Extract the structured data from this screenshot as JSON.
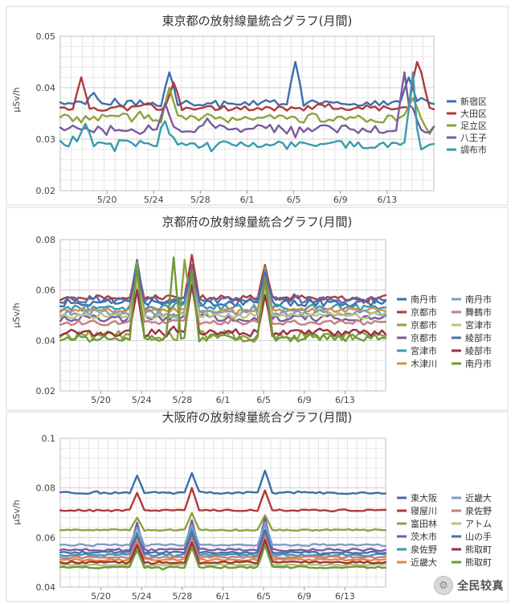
{
  "chart_data": [
    {
      "type": "line",
      "title": "東京都の放射線量統合グラフ(月間)",
      "ylabel": "μSv/h",
      "ylim": [
        0.02,
        0.05
      ],
      "yticks": [
        "0.02",
        "0.03",
        "0.04",
        "0.05"
      ],
      "xtick_labels": [
        "5/20",
        "5/24",
        "5/28",
        "6/1",
        "6/5",
        "6/9",
        "6/13"
      ],
      "legend_position": "right",
      "series": [
        {
          "name": "新宿区",
          "color": "#3f6ea8",
          "base": 0.037,
          "noise": 0.0006,
          "spikes": [
            [
              8,
              0.039
            ],
            [
              26,
              0.043
            ],
            [
              56,
              0.045
            ],
            [
              83,
              0.042
            ],
            [
              86,
              0.038
            ]
          ]
        },
        {
          "name": "大田区",
          "color": "#b03a3a",
          "base": 0.036,
          "noise": 0.0005,
          "spikes": [
            [
              5,
              0.042
            ],
            [
              21,
              0.037
            ],
            [
              27,
              0.041
            ],
            [
              62,
              0.037
            ],
            [
              85,
              0.047
            ],
            [
              86,
              0.043
            ]
          ]
        },
        {
          "name": "足立区",
          "color": "#8da33f",
          "base": 0.034,
          "noise": 0.0008,
          "spikes": [
            [
              15,
              0.035
            ],
            [
              26,
              0.04
            ],
            [
              45,
              0.034
            ],
            [
              60,
              0.035
            ],
            [
              84,
              0.038
            ],
            [
              88,
              0.031
            ]
          ]
        },
        {
          "name": "八王子",
          "color": "#7a5a9e",
          "base": 0.032,
          "noise": 0.0008,
          "spikes": [
            [
              25,
              0.037
            ],
            [
              35,
              0.034
            ],
            [
              82,
              0.043
            ],
            [
              84,
              0.036
            ]
          ]
        },
        {
          "name": "調布市",
          "color": "#3a9aae",
          "base": 0.029,
          "noise": 0.0008,
          "spikes": [
            [
              6,
              0.033
            ],
            [
              25,
              0.036
            ],
            [
              26,
              0.031
            ],
            [
              84,
              0.043
            ],
            [
              86,
              0.028
            ]
          ]
        }
      ]
    },
    {
      "type": "line",
      "title": "京都府の放射線量統合グラフ(月間)",
      "ylabel": "μSv/h",
      "ylim": [
        0.02,
        0.08
      ],
      "yticks": [
        "0.02",
        "0.04",
        "0.06",
        "0.08"
      ],
      "xtick_labels": [
        "5/20",
        "5/24",
        "5/28",
        "6/1",
        "6/5",
        "6/9",
        "6/13"
      ],
      "legend_position": "right",
      "series": [
        {
          "name": "南丹市",
          "color": "#3f6ea8",
          "base": 0.055,
          "noise": 0.0015,
          "spikes": [
            [
              21,
              0.072
            ],
            [
              36,
              0.07
            ],
            [
              56,
              0.067
            ]
          ]
        },
        {
          "name": "京都市",
          "color": "#b03a3a",
          "base": 0.057,
          "noise": 0.001,
          "spikes": [
            [
              21,
              0.068
            ],
            [
              36,
              0.074
            ],
            [
              56,
              0.07
            ]
          ]
        },
        {
          "name": "京都市",
          "color": "#8da33f",
          "base": 0.042,
          "noise": 0.002,
          "spikes": [
            [
              21,
              0.071
            ],
            [
              34,
              0.072
            ],
            [
              36,
              0.066
            ],
            [
              56,
              0.069
            ]
          ]
        },
        {
          "name": "京都市",
          "color": "#7a5a9e",
          "base": 0.049,
          "noise": 0.0015,
          "spikes": [
            [
              21,
              0.065
            ],
            [
              36,
              0.07
            ],
            [
              56,
              0.066
            ]
          ]
        },
        {
          "name": "宮津市",
          "color": "#3a9aae",
          "base": 0.053,
          "noise": 0.0015,
          "spikes": [
            [
              21,
              0.067
            ],
            [
              36,
              0.065
            ],
            [
              56,
              0.068
            ]
          ]
        },
        {
          "name": "木津川",
          "color": "#e08a3a",
          "base": 0.052,
          "noise": 0.001,
          "spikes": [
            [
              21,
              0.066
            ],
            [
              36,
              0.067
            ],
            [
              56,
              0.064
            ]
          ]
        },
        {
          "name": "南丹市",
          "color": "#7f9cc4",
          "base": 0.051,
          "noise": 0.0012,
          "spikes": [
            [
              21,
              0.064
            ],
            [
              36,
              0.066
            ],
            [
              56,
              0.063
            ]
          ]
        },
        {
          "name": "舞鶴市",
          "color": "#c47f7f",
          "base": 0.047,
          "noise": 0.001,
          "spikes": [
            [
              21,
              0.062
            ],
            [
              36,
              0.064
            ],
            [
              56,
              0.061
            ]
          ]
        },
        {
          "name": "宮津市",
          "color": "#b5c47f",
          "base": 0.05,
          "noise": 0.0012,
          "spikes": [
            [
              21,
              0.063
            ],
            [
              36,
              0.063
            ],
            [
              56,
              0.06
            ]
          ]
        },
        {
          "name": "綾部市",
          "color": "#4d6fb0",
          "base": 0.056,
          "noise": 0.0012,
          "spikes": [
            [
              21,
              0.069
            ],
            [
              36,
              0.068
            ],
            [
              56,
              0.067
            ]
          ]
        },
        {
          "name": "綾部市",
          "color": "#9e2f3f",
          "base": 0.043,
          "noise": 0.0015,
          "spikes": [
            [
              21,
              0.06
            ],
            [
              36,
              0.062
            ],
            [
              56,
              0.058
            ]
          ]
        },
        {
          "name": "南丹市",
          "color": "#6f9a3a",
          "base": 0.041,
          "noise": 0.0015,
          "spikes": [
            [
              21,
              0.07
            ],
            [
              31,
              0.073
            ],
            [
              36,
              0.068
            ],
            [
              56,
              0.065
            ]
          ]
        }
      ]
    },
    {
      "type": "line",
      "title": "大阪府の放射線量統合グラフ(月間)",
      "ylabel": "μSv/h",
      "ylim": [
        0.04,
        0.1
      ],
      "yticks": [
        "0.04",
        "0.06",
        "0.08",
        "0.1"
      ],
      "xtick_labels": [
        "5/20",
        "5/24",
        "5/28",
        "6/1",
        "6/5",
        "6/9",
        "6/13"
      ],
      "legend_position": "right",
      "series": [
        {
          "name": "東大阪",
          "color": "#3f6ea8",
          "base": 0.078,
          "noise": 0.0004,
          "spikes": [
            [
              21,
              0.085
            ],
            [
              36,
              0.086
            ],
            [
              56,
              0.087
            ]
          ]
        },
        {
          "name": "寝屋川",
          "color": "#b03a3a",
          "base": 0.071,
          "noise": 0.0003,
          "spikes": [
            [
              21,
              0.078
            ],
            [
              36,
              0.08
            ],
            [
              56,
              0.079
            ]
          ]
        },
        {
          "name": "富田林",
          "color": "#8da33f",
          "base": 0.063,
          "noise": 0.0003,
          "spikes": [
            [
              21,
              0.068
            ],
            [
              36,
              0.07
            ],
            [
              56,
              0.069
            ]
          ]
        },
        {
          "name": "茨木市",
          "color": "#7a5a9e",
          "base": 0.055,
          "noise": 0.0005,
          "spikes": [
            [
              21,
              0.066
            ],
            [
              36,
              0.067
            ],
            [
              56,
              0.068
            ]
          ]
        },
        {
          "name": "泉佐野",
          "color": "#3a9aae",
          "base": 0.053,
          "noise": 0.0005,
          "spikes": [
            [
              21,
              0.062
            ],
            [
              36,
              0.064
            ],
            [
              56,
              0.066
            ]
          ]
        },
        {
          "name": "近畿大",
          "color": "#e08a3a",
          "base": 0.051,
          "noise": 0.0004,
          "spikes": [
            [
              21,
              0.058
            ],
            [
              36,
              0.06
            ],
            [
              56,
              0.061
            ]
          ]
        },
        {
          "name": "近畿大",
          "color": "#7f9cc4",
          "base": 0.057,
          "noise": 0.0004,
          "spikes": [
            [
              21,
              0.064
            ],
            [
              36,
              0.065
            ],
            [
              56,
              0.066
            ]
          ]
        },
        {
          "name": "泉佐野",
          "color": "#c47f7f",
          "base": 0.052,
          "noise": 0.0004,
          "spikes": [
            [
              21,
              0.06
            ],
            [
              36,
              0.061
            ],
            [
              56,
              0.062
            ]
          ]
        },
        {
          "name": "アトム",
          "color": "#b5c47f",
          "base": 0.049,
          "noise": 0.0004,
          "spikes": [
            [
              21,
              0.056
            ],
            [
              36,
              0.057
            ],
            [
              56,
              0.058
            ]
          ]
        },
        {
          "name": "山の手",
          "color": "#4d6fb0",
          "base": 0.054,
          "noise": 0.0004,
          "spikes": [
            [
              21,
              0.061
            ],
            [
              36,
              0.062
            ],
            [
              56,
              0.063
            ]
          ]
        },
        {
          "name": "熊取町",
          "color": "#9e2f3f",
          "base": 0.05,
          "noise": 0.0004,
          "spikes": [
            [
              21,
              0.057
            ],
            [
              36,
              0.058
            ],
            [
              56,
              0.059
            ]
          ]
        },
        {
          "name": "熊取町",
          "color": "#6f9a3a",
          "base": 0.048,
          "noise": 0.0004,
          "spikes": [
            [
              21,
              0.055
            ],
            [
              36,
              0.056
            ],
            [
              56,
              0.057
            ]
          ]
        }
      ]
    }
  ],
  "watermark": {
    "logo": "⚙",
    "text": "全民较真"
  }
}
